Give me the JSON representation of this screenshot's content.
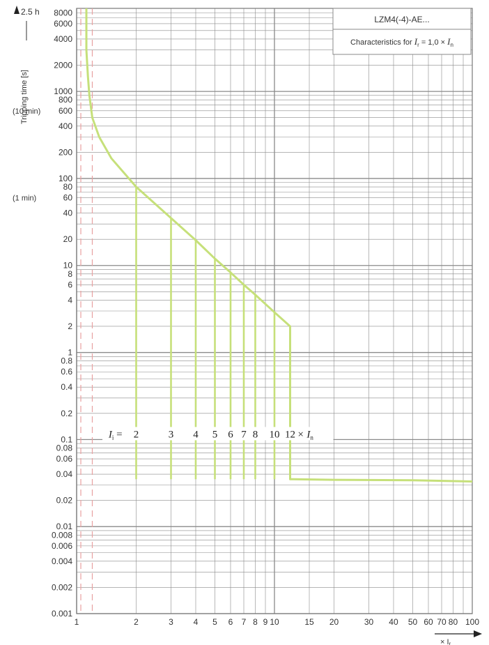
{
  "chart_data": {
    "type": "line",
    "title": "LZM4(-4)-AE...",
    "subtitle": "Characteristics for I_r = 1,0 × I_n",
    "subtitle_parts": {
      "prefix": "Characteristics for ",
      "var": "I",
      "sub": "r",
      "mid": " = 1,0 × ",
      "var2": "I",
      "sub2": "n"
    },
    "ylabel": "Tripping time [s]",
    "ylabel_top": "2.5 h",
    "y_annotations": [
      {
        "text": "(10 min)",
        "y": 600
      },
      {
        "text": "(1 min)",
        "y": 60
      }
    ],
    "xlabel": "× I",
    "xlabel_sub": "r",
    "x_scale": "log",
    "y_scale": "log",
    "xlim": [
      1,
      100
    ],
    "ylim": [
      0.001,
      9000
    ],
    "x_ticks": [
      1,
      2,
      3,
      4,
      5,
      6,
      7,
      8,
      9,
      10,
      15,
      20,
      30,
      40,
      50,
      60,
      70,
      80,
      100
    ],
    "x_tick_labels": [
      "1",
      "2",
      "3",
      "4",
      "5",
      "6",
      "7",
      "8",
      "9",
      "10",
      "15",
      "20",
      "30",
      "40",
      "50",
      "60",
      "70",
      "80",
      "100"
    ],
    "y_ticks": [
      0.001,
      0.002,
      0.004,
      0.006,
      0.008,
      0.01,
      0.02,
      0.04,
      0.06,
      0.08,
      0.1,
      0.2,
      0.4,
      0.6,
      0.8,
      1,
      2,
      4,
      6,
      8,
      10,
      20,
      40,
      60,
      80,
      100,
      200,
      400,
      600,
      800,
      1000,
      2000,
      4000,
      6000,
      8000
    ],
    "y_tick_labels": [
      "0.001",
      "0.002",
      "0.004",
      "0.006",
      "0.008",
      "0.01",
      "0.02",
      "0.04",
      "0.06",
      "0.08",
      "0.1",
      "0.2",
      "0.4",
      "0.6",
      "0.8",
      "1",
      "2",
      "4",
      "6",
      "8",
      "10",
      "20",
      "40",
      "60",
      "80",
      "100",
      "200",
      "400",
      "600",
      "800",
      "1000",
      "2000",
      "4000",
      "6000",
      "8000"
    ],
    "grid": true,
    "series": [
      {
        "color": "#c6e07a",
        "x": [
          1.12,
          1.12,
          1.14,
          1.16,
          1.2,
          1.3,
          1.5,
          2,
          3,
          4,
          5,
          6,
          7,
          8,
          10,
          12,
          12,
          12.5,
          20,
          50,
          100
        ],
        "y": [
          9000,
          3000,
          1500,
          900,
          500,
          300,
          170,
          80,
          35,
          19.5,
          12,
          8.3,
          6,
          4.6,
          2.9,
          2.0,
          0.035,
          0.035,
          0.0345,
          0.034,
          0.033
        ]
      }
    ],
    "irr_setting_lines": {
      "prefix": "I",
      "sub": "i",
      "eq": " =",
      "values": [
        2,
        3,
        4,
        5,
        6,
        7,
        8,
        10,
        12
      ],
      "labels": [
        "2",
        "3",
        "4",
        "5",
        "6",
        "7",
        "8",
        "10",
        "12"
      ],
      "suffix": "× I",
      "suffix_sub": "n",
      "top_y": [
        80,
        35,
        19.5,
        12,
        8.3,
        6,
        4.6,
        2.9,
        2.0
      ],
      "bottom_y": 0.035,
      "label_y": 0.1
    },
    "dashed_reference_x": [
      1.05,
      1.2
    ],
    "colors": {
      "curve": "#c6e07a",
      "grid": "#8a8a8a",
      "dashed": "#e8a0a0"
    }
  }
}
